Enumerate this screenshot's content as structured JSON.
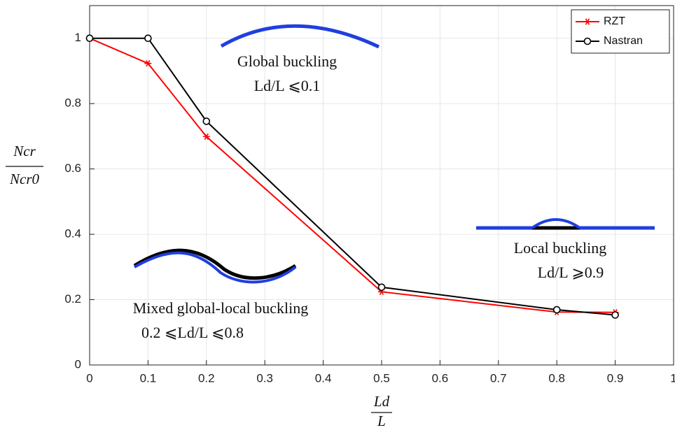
{
  "chart_data": {
    "type": "line",
    "annotations": [
      "Global buckling",
      "Ld/L ⩽0.1",
      "Local buckling",
      "Ld/L ⩾0.9",
      "Mixed global-local buckling",
      "0.2 ⩽Ld/L ⩽0.8"
    ],
    "ylabel_numerator": "Ncr",
    "ylabel_denominator": "Ncr0",
    "xlabel_numerator": "Ld",
    "xlabel_denominator": "L",
    "x": [
      0,
      0.1,
      0.2,
      0.5,
      0.8,
      0.9
    ],
    "series": [
      {
        "name": "RZT",
        "color": "#ff0000",
        "marker": "asterisk",
        "values": [
          1,
          0.923,
          0.699,
          0.224,
          0.162,
          0.161
        ]
      },
      {
        "name": "Nastran",
        "color": "#000000",
        "marker": "circle",
        "values": [
          1,
          1,
          0.746,
          0.238,
          0.169,
          0.153
        ]
      }
    ],
    "xlim": [
      0,
      1
    ],
    "xticks": [
      0,
      0.1,
      0.2,
      0.3,
      0.4,
      0.5,
      0.6,
      0.7,
      0.8,
      0.9,
      1
    ],
    "ylim": [
      0,
      1.1
    ],
    "yticks": [
      0,
      0.2,
      0.4,
      0.6,
      0.8,
      1
    ],
    "grid": true,
    "legend": "northeast"
  }
}
